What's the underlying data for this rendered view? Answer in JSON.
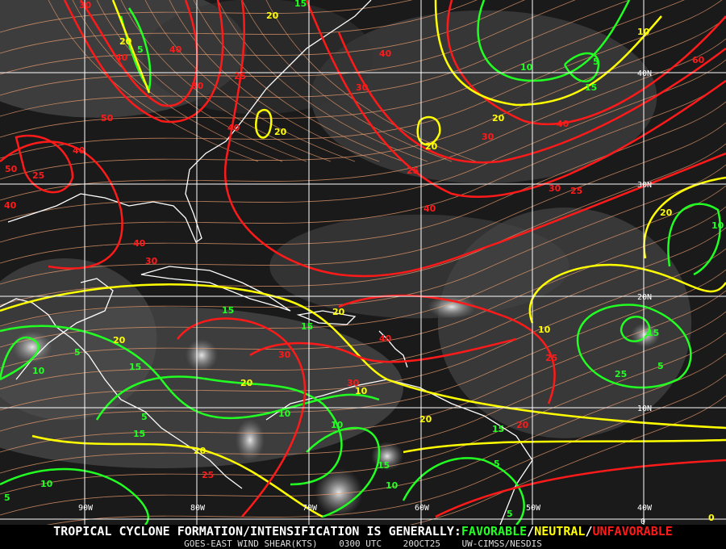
{
  "footer": {
    "headline_prefix": "TROPICAL CYCLONE FORMATION/INTENSIFICATION IS GENERALLY:",
    "favorable": "FAVORABLE",
    "sep1": "/",
    "neutral": "NEUTRAL",
    "sep2": "/",
    "unfavorable": "UNFAVORABLE",
    "product": "GOES-EAST WIND SHEAR(KTS)",
    "time": "0300 UTC",
    "date": "20OCT25",
    "source": "UW-CIMSS/NESDIS"
  },
  "grid": {
    "longitudes": [
      "90W",
      "80W",
      "70W",
      "60W",
      "50W",
      "40W"
    ],
    "latitudes": [
      "40N",
      "30N",
      "20N",
      "10N",
      "0"
    ]
  },
  "contour_labels": [
    "30",
    "20",
    "5",
    "40",
    "40",
    "30",
    "15",
    "20",
    "25",
    "60",
    "40",
    "30",
    "15",
    "10",
    "5",
    "10",
    "50",
    "40",
    "40",
    "20",
    "20",
    "30",
    "40",
    "25",
    "20",
    "50",
    "25",
    "40",
    "30",
    "25",
    "40",
    "20",
    "10",
    "40",
    "30",
    "20",
    "15",
    "15",
    "15",
    "20",
    "5",
    "10",
    "40",
    "30",
    "20",
    "30",
    "25",
    "15",
    "5",
    "10",
    "20",
    "20",
    "15",
    "10",
    "5",
    "15",
    "15",
    "10",
    "25",
    "10",
    "10",
    "5",
    "5",
    "10",
    "5",
    "20",
    "25",
    "0"
  ],
  "colors": {
    "favorable": "#22ff22",
    "neutral": "#ffff00",
    "unfavorable": "#ff1a1a",
    "streamline": "#f0a070",
    "coastline": "#ffffff",
    "grid": "#ffffff"
  }
}
